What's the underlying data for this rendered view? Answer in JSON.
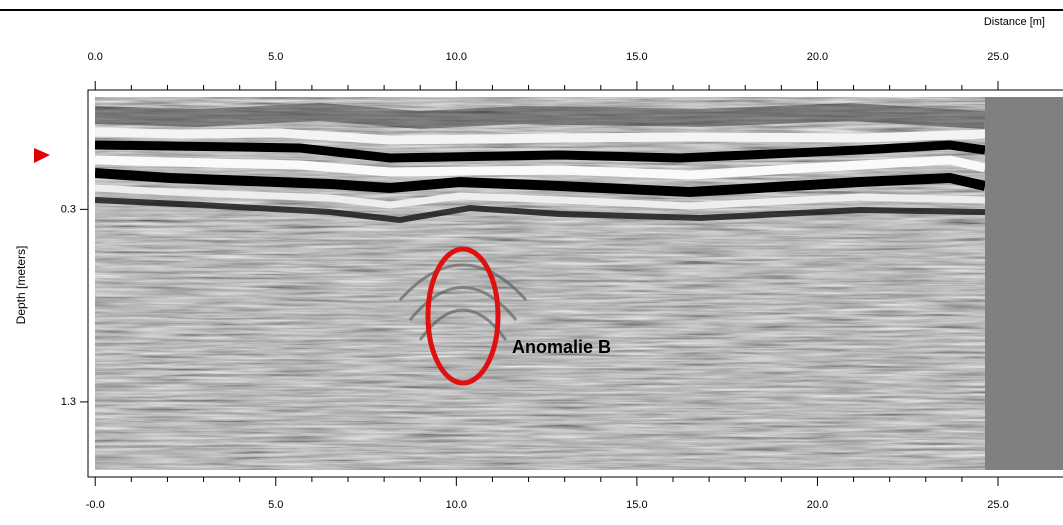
{
  "chart_data": {
    "type": "radargram",
    "x_label": "Distance [m]",
    "y_label": "Depth [meters]",
    "xlim": [
      -0.2,
      26.8
    ],
    "ylim": [
      -0.32,
      1.69
    ],
    "xticks": [
      {
        "value": 0,
        "label": "0.0"
      },
      {
        "value": 5,
        "label": "5.0"
      },
      {
        "value": 10,
        "label": "10.0"
      },
      {
        "value": 15,
        "label": "15.0"
      },
      {
        "value": 20,
        "label": "20.0"
      },
      {
        "value": 25,
        "label": "25.0"
      }
    ],
    "xticks_bottom": [
      {
        "value": 0,
        "label": "-0.0"
      },
      {
        "value": 5,
        "label": "5.0"
      },
      {
        "value": 10,
        "label": "10.0"
      },
      {
        "value": 15,
        "label": "15.0"
      },
      {
        "value": 20,
        "label": "20.0"
      },
      {
        "value": 25,
        "label": "25.0"
      }
    ],
    "yticks": [
      0.3,
      1.3
    ],
    "annotation": "Anomalie B"
  }
}
